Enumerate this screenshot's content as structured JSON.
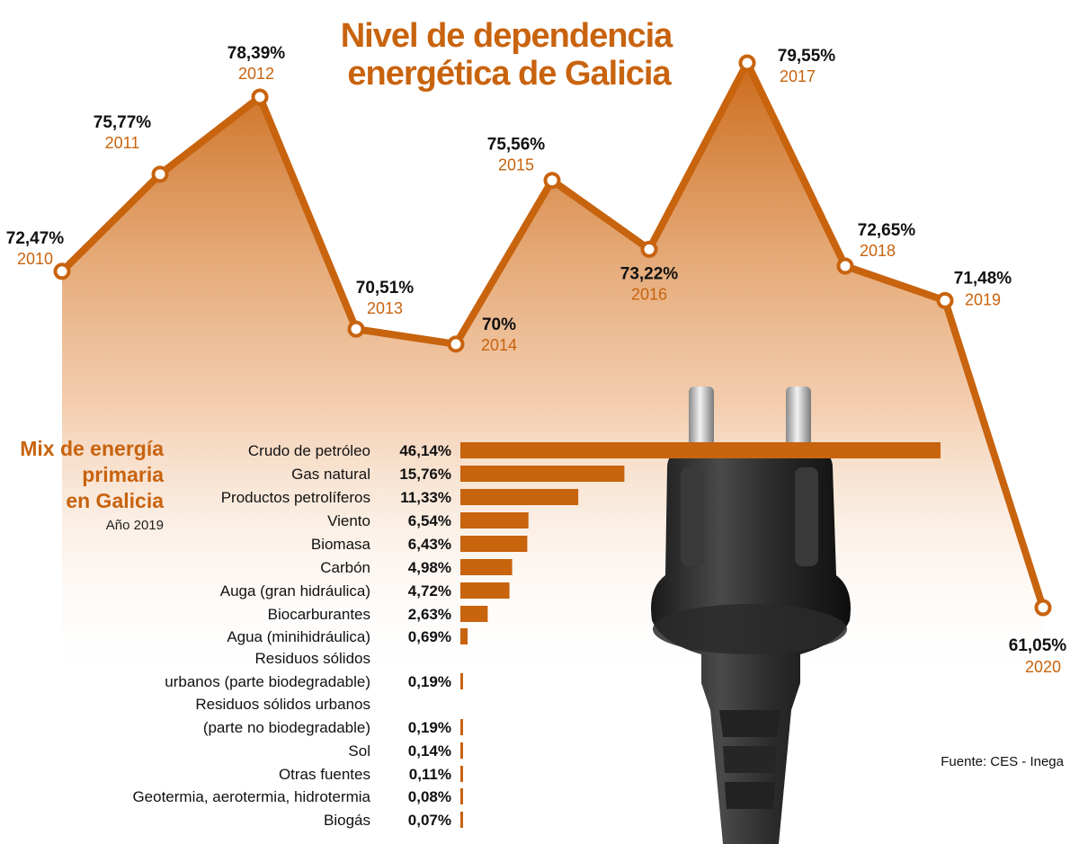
{
  "source": "Fuente: CES - Inega",
  "chart_data": [
    {
      "type": "area",
      "title_line1": "Nivel de dependencia",
      "title_line2": "energética de Galicia",
      "unit": "%",
      "x": [
        "2010",
        "2011",
        "2012",
        "2013",
        "2014",
        "2015",
        "2016",
        "2017",
        "2018",
        "2019",
        "2020"
      ],
      "values": [
        72.47,
        75.77,
        78.39,
        70.51,
        70,
        75.56,
        73.22,
        79.55,
        72.65,
        71.48,
        61.05
      ],
      "value_labels": [
        "72,47%",
        "75,77%",
        "78,39%",
        "70,51%",
        "70%",
        "75,56%",
        "73,22%",
        "79,55%",
        "72,65%",
        "71,48%",
        "61,05%"
      ],
      "color": "#c8630e"
    },
    {
      "type": "bar",
      "orientation": "horizontal",
      "title_lines": [
        "Mix de energía",
        "primaria",
        "en Galicia"
      ],
      "subtitle": "Año 2019",
      "categories": [
        [
          "Crudo de petróleo"
        ],
        [
          "Gas natural"
        ],
        [
          "Productos petrolíferos"
        ],
        [
          "Viento"
        ],
        [
          "Biomasa"
        ],
        [
          "Carbón"
        ],
        [
          "Auga (gran hidráulica)"
        ],
        [
          "Biocarburantes"
        ],
        [
          "Agua (minihidráulica)"
        ],
        [
          "Residuos sólidos",
          "urbanos (parte biodegradable)"
        ],
        [
          "Residuos sólidos urbanos",
          "(parte no biodegradable)"
        ],
        [
          "Sol"
        ],
        [
          "Otras fuentes"
        ],
        [
          "Geotermia, aerotermia, hidrotermia"
        ],
        [
          "Biogás"
        ]
      ],
      "values": [
        46.14,
        15.76,
        11.33,
        6.54,
        6.43,
        4.98,
        4.72,
        2.63,
        0.69,
        0.19,
        0.19,
        0.14,
        0.11,
        0.08,
        0.07
      ],
      "value_labels": [
        "46,14%",
        "15,76%",
        "11,33%",
        "6,54%",
        "6,43%",
        "4,98%",
        "4,72%",
        "2,63%",
        "0,69%",
        "0,19%",
        "0,19%",
        "0,14%",
        "0,11%",
        "0,08%",
        "0,07%"
      ],
      "color": "#c8630e"
    }
  ]
}
